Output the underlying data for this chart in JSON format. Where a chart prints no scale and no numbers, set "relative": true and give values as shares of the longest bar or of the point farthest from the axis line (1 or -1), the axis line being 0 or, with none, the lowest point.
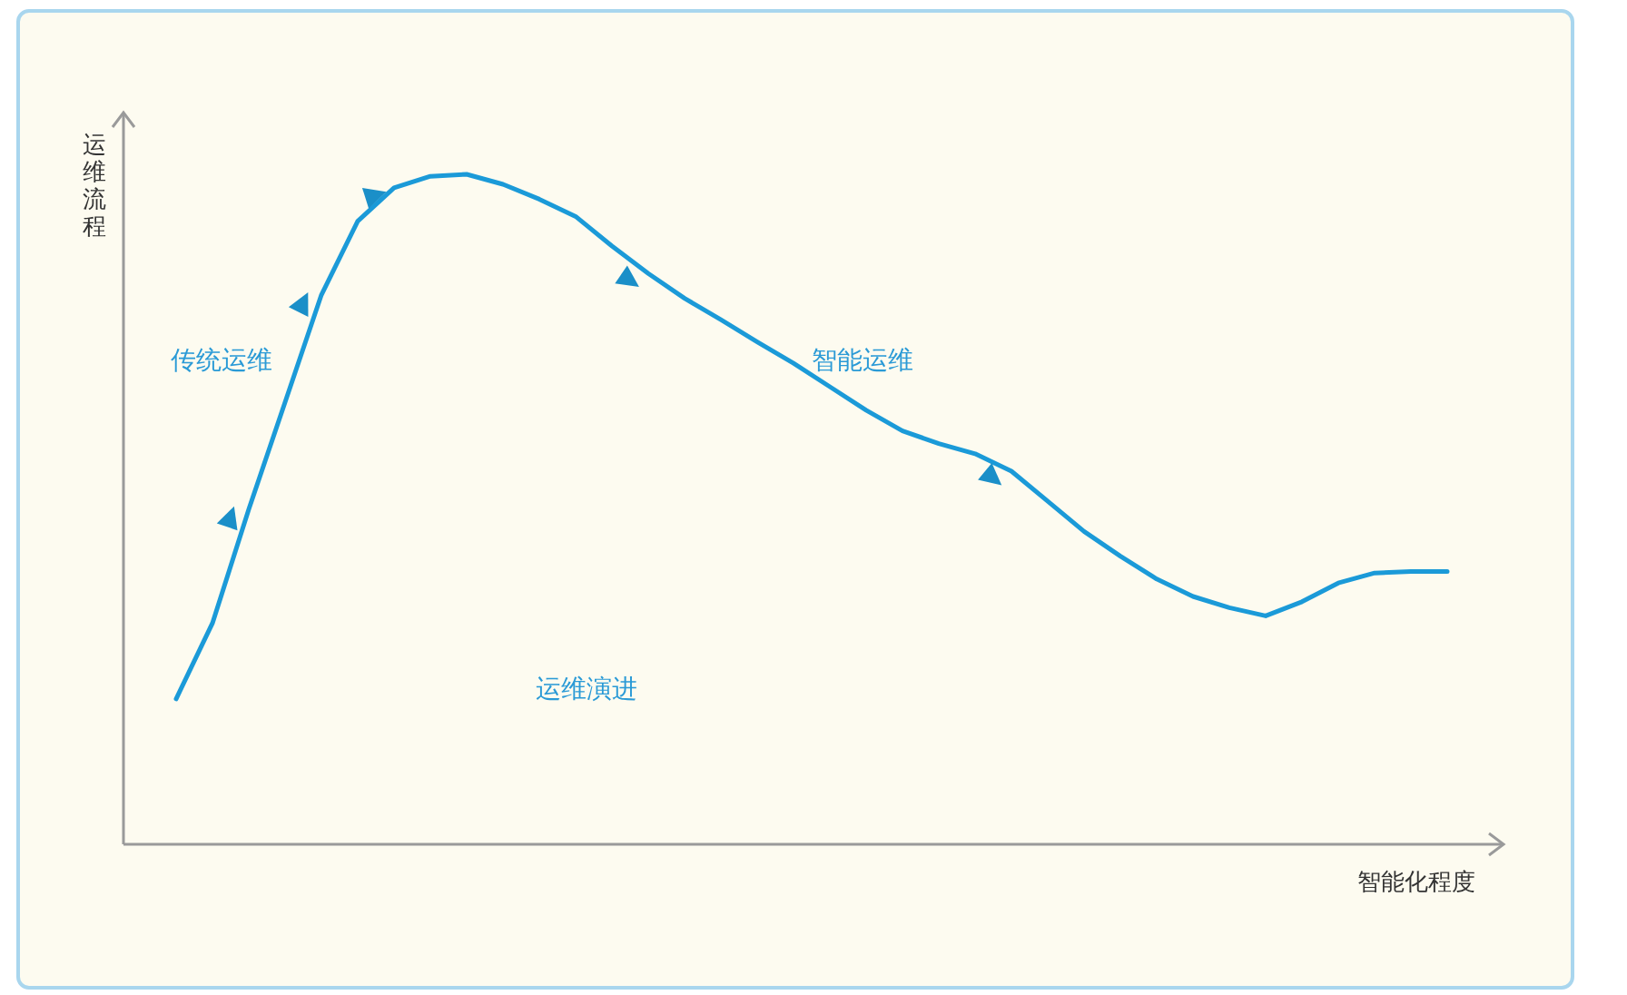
{
  "chart_data": {
    "type": "line",
    "relative": true,
    "xlabel": "智能化程度",
    "ylabel": "运维流程",
    "annotations": [
      "传统运维",
      "智能运维",
      "运维演进"
    ],
    "categories": [
      null,
      null,
      null,
      null,
      null,
      null,
      null,
      null,
      null,
      null,
      null,
      null,
      null,
      null,
      null,
      null,
      null,
      null,
      null,
      null,
      null,
      null,
      null,
      null,
      null,
      null,
      null,
      null,
      null,
      null,
      null,
      null,
      null,
      null,
      null,
      null
    ],
    "series": [
      {
        "color": "#1b9ad8",
        "values": [
          0.217,
          0.33,
          0.5,
          0.66,
          0.82,
          0.93,
          0.98,
          0.997,
          1,
          0.985,
          0.963,
          0.937,
          0.893,
          0.852,
          0.815,
          0.783,
          0.75,
          0.718,
          0.683,
          0.648,
          0.617,
          0.598,
          0.583,
          0.557,
          0.512,
          0.467,
          0.43,
          0.396,
          0.37,
          0.353,
          0.341,
          0.362,
          0.39,
          0.405,
          0.407,
          0.407
        ]
      }
    ],
    "marker": "none",
    "line_style": "solid"
  }
}
